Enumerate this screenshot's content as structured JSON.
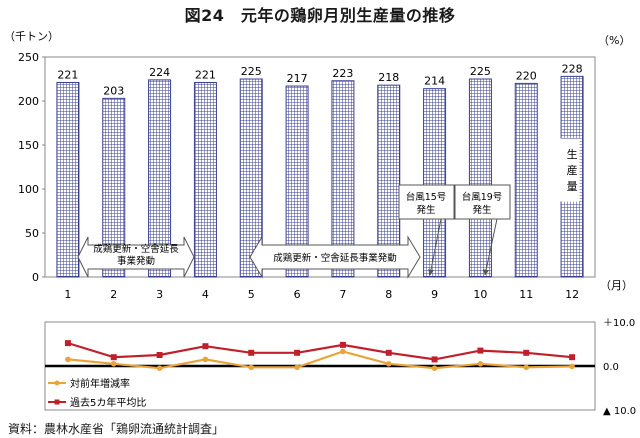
{
  "figure_title": "図24　元年の鶏卵月別生産量の推移",
  "source": "資料：農林水産省「鶏卵流通統計調査」",
  "chart_data": [
    {
      "type": "bar",
      "ylabel": "（千トン）",
      "ylabel_right": "（%）",
      "xlabel": "（月）",
      "ylim": [
        0,
        250
      ],
      "yticks": [
        0,
        50,
        100,
        150,
        200,
        250
      ],
      "categories": [
        "1",
        "2",
        "3",
        "4",
        "5",
        "6",
        "7",
        "8",
        "9",
        "10",
        "11",
        "12"
      ],
      "values": [
        221,
        203,
        224,
        221,
        225,
        217,
        223,
        218,
        214,
        225,
        220,
        228
      ],
      "data_labels": [
        "221",
        "203",
        "224",
        "221",
        "225",
        "217",
        "223",
        "218",
        "214",
        "225",
        "220",
        "228"
      ],
      "series_label": "生産量",
      "bar_color": "#3a3f8f",
      "grid": false,
      "annotations": [
        {
          "text": "成鶏更新・空舎延長事業発動",
          "span": [
            "2",
            "3"
          ]
        },
        {
          "text": "成鶏更新・空舎延長事業発動",
          "span": [
            "5",
            "8"
          ]
        },
        {
          "text": "台風15号発生",
          "month": "9"
        },
        {
          "text": "台風19号発生",
          "month": "10"
        }
      ]
    },
    {
      "type": "line",
      "x": [
        "1",
        "2",
        "3",
        "4",
        "5",
        "6",
        "7",
        "8",
        "9",
        "10",
        "11",
        "12"
      ],
      "ylim": [
        -10,
        10
      ],
      "yticks": [
        "＋10.0",
        "0.0",
        "▲ 10.0"
      ],
      "legend_position": "bottom-left",
      "series": [
        {
          "name": "対前年増減率",
          "color": "#e8a33a",
          "values": [
            1.5,
            0.5,
            -0.5,
            1.5,
            -0.3,
            -0.3,
            3.3,
            0.5,
            -0.5,
            0.5,
            -0.3,
            -0.1
          ]
        },
        {
          "name": "過去5カ年平均比",
          "color": "#c0202a",
          "values": [
            5.2,
            2.0,
            2.5,
            4.5,
            3.0,
            3.0,
            4.8,
            3.0,
            1.5,
            3.5,
            3.0,
            2.0
          ]
        }
      ]
    }
  ]
}
